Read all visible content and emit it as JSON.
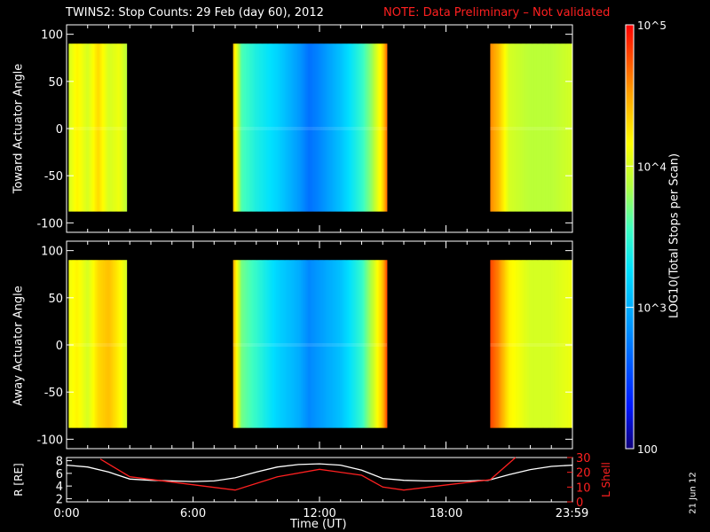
{
  "header": {
    "title": "TWINS2: Stop Counts: 29 Feb (day  60), 2012",
    "note": "NOTE: Data Preliminary – Not validated",
    "stamp": "21 Jun 12"
  },
  "colors": {
    "background": "#000000",
    "axes": "#ffffff",
    "note": "#ff2020",
    "r_line": "#ffffff",
    "lshell_line": "#ff2020"
  },
  "colorbar": {
    "label": "LOG10(Total Stops per Scan)",
    "tick_labels": [
      "10^5",
      "10^4",
      "10^3",
      "100"
    ],
    "tick_values": [
      100000,
      10000,
      1000,
      100
    ],
    "min": 100,
    "max": 100000,
    "scale": "log"
  },
  "chart_data": [
    {
      "type": "heatmap",
      "name": "toward",
      "ylabel": "Toward Actuator Angle",
      "xlabel": "",
      "xlim": [
        0,
        24
      ],
      "ylim": [
        -110,
        110
      ],
      "yticks": [
        100,
        50,
        0,
        -50,
        -100
      ],
      "ytick_labels": [
        "100",
        "50",
        "0",
        "-50",
        "-100"
      ],
      "angle_range": [
        -88,
        90
      ],
      "data_intervals_hours": [
        [
          0.1,
          2.85
        ],
        [
          7.9,
          15.2
        ],
        [
          20.1,
          24.0
        ]
      ],
      "log_counts_profile": {
        "hours": [
          0.1,
          0.5,
          1.0,
          1.5,
          2.0,
          2.5,
          2.85,
          7.9,
          8.3,
          9.0,
          10.0,
          11.0,
          11.5,
          12.0,
          13.0,
          14.0,
          14.5,
          15.0,
          15.2,
          20.1,
          20.5,
          21.0,
          22.0,
          23.0,
          24.0
        ],
        "values": [
          4.0,
          4.2,
          4.0,
          4.3,
          4.0,
          4.1,
          3.9,
          4.4,
          3.6,
          3.4,
          3.2,
          2.9,
          2.7,
          2.8,
          3.1,
          3.5,
          3.8,
          4.3,
          4.7,
          4.6,
          4.4,
          4.0,
          3.9,
          3.9,
          4.0
        ]
      }
    },
    {
      "type": "heatmap",
      "name": "away",
      "ylabel": "Away Actuator Angle",
      "xlabel": "",
      "xlim": [
        0,
        24
      ],
      "ylim": [
        -110,
        110
      ],
      "yticks": [
        100,
        50,
        0,
        -50,
        -100
      ],
      "ytick_labels": [
        "100",
        "50",
        "0",
        "-50",
        "-100"
      ],
      "angle_range": [
        -88,
        90
      ],
      "data_intervals_hours": [
        [
          0.1,
          2.85
        ],
        [
          7.9,
          15.2
        ],
        [
          20.1,
          24.0
        ]
      ],
      "log_counts_profile": {
        "hours": [
          0.1,
          0.5,
          1.0,
          1.5,
          2.0,
          2.5,
          2.85,
          7.9,
          8.3,
          9.0,
          10.0,
          11.0,
          11.5,
          12.0,
          13.0,
          14.0,
          14.5,
          15.0,
          15.2,
          20.1,
          20.5,
          21.0,
          22.0,
          23.0,
          24.0
        ],
        "values": [
          4.1,
          4.2,
          4.0,
          4.3,
          4.4,
          4.2,
          4.0,
          4.5,
          3.7,
          3.5,
          3.2,
          3.0,
          2.8,
          2.9,
          3.1,
          3.5,
          3.9,
          4.4,
          4.8,
          4.8,
          4.6,
          4.2,
          4.0,
          4.0,
          4.1
        ]
      }
    },
    {
      "type": "line",
      "name": "orbit",
      "xlabel": "Time (UT)",
      "ylabel": "R [RE]",
      "y2label": "L Shell",
      "xlim": [
        0,
        24
      ],
      "ylim": [
        1.5,
        8.5
      ],
      "y2lim": [
        0,
        30
      ],
      "xticks": [
        0.0,
        6.0,
        12.0,
        18.0,
        23.98
      ],
      "xtick_labels": [
        "0:00",
        "6:00",
        "12:00",
        "18:00",
        "23:59"
      ],
      "yticks": [
        2,
        4,
        6,
        8
      ],
      "ytick_labels": [
        "2",
        "4",
        "6",
        "8"
      ],
      "y2ticks": [
        0,
        10,
        20,
        30
      ],
      "y2tick_labels": [
        "0",
        "10",
        "20",
        "30"
      ],
      "series": [
        {
          "name": "R",
          "axis": "left",
          "x": [
            0.0,
            1.0,
            2.0,
            3.0,
            4.0,
            5.0,
            6.0,
            7.0,
            8.0,
            9.0,
            10.0,
            11.0,
            12.0,
            13.0,
            14.0,
            15.0,
            16.0,
            17.0,
            18.0,
            19.0,
            20.0,
            21.0,
            22.0,
            23.0,
            24.0
          ],
          "values": [
            7.3,
            7.0,
            6.2,
            5.1,
            4.9,
            4.8,
            4.7,
            4.8,
            5.3,
            6.2,
            7.0,
            7.4,
            7.5,
            7.3,
            6.5,
            5.2,
            4.9,
            4.8,
            4.8,
            4.8,
            4.9,
            5.8,
            6.6,
            7.1,
            7.3
          ]
        },
        {
          "name": "L Shell",
          "axis": "right",
          "x": [
            1.6,
            3.0,
            8.0,
            10.0,
            12.0,
            14.0,
            15.0,
            16.0,
            20.1,
            21.3
          ],
          "values": [
            29,
            17,
            8,
            17,
            22,
            18,
            10,
            8,
            15,
            30
          ]
        }
      ]
    }
  ]
}
